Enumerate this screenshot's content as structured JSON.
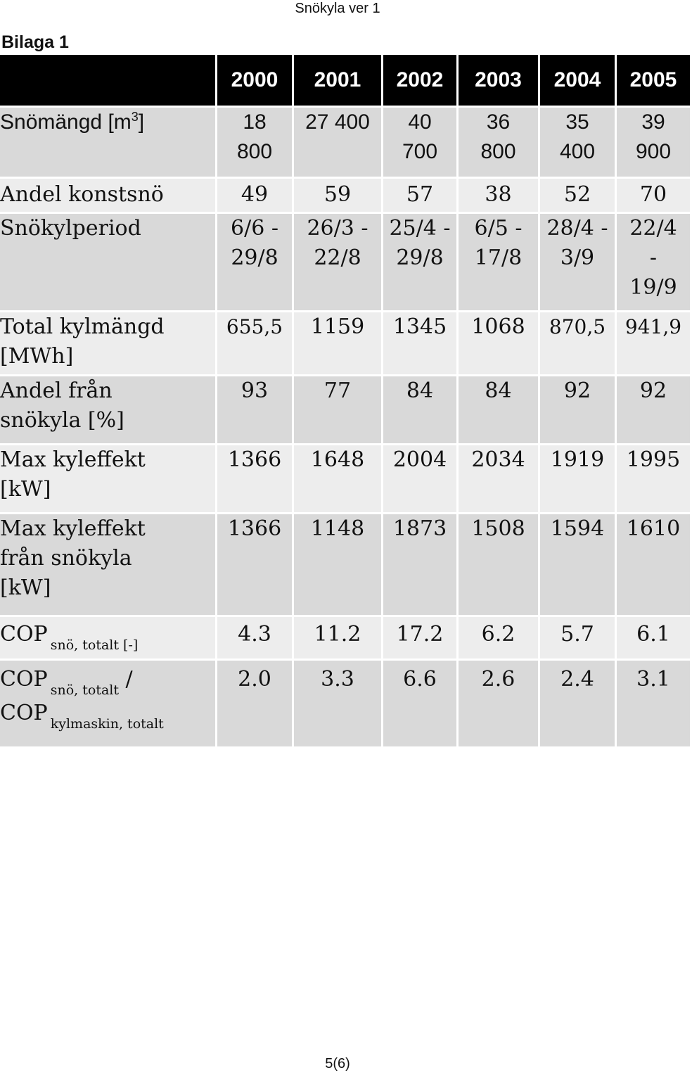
{
  "header": {
    "text": "Snökyla ver 1"
  },
  "attachment_label": "Bilaga 1",
  "table": {
    "years": [
      "2000",
      "2001",
      "2002",
      "2003",
      "2004",
      "2005"
    ],
    "rows": [
      {
        "label": "Snömängd [m",
        "label_sup": "3",
        "label_after": "]",
        "values": [
          "18 800",
          "27 400",
          "40 700",
          "36 800",
          "35 400",
          "39 900"
        ]
      },
      {
        "label": "Andel konstsnö",
        "values": [
          "49",
          "59",
          "57",
          "38",
          "52",
          "70"
        ]
      },
      {
        "label": "Snökylperiod",
        "values": [
          "6/6 - 29/8",
          "26/3 - 22/8",
          "25/4 - 29/8",
          "6/5 - 17/8",
          "28/4 - 3/9",
          "22/4 - 19/9"
        ]
      },
      {
        "label": "Total kylmängd [MWh]",
        "values": [
          "655,5",
          "1159",
          "1345",
          "1068",
          "870,5",
          "941,9"
        ]
      },
      {
        "label": "Andel från snökyla [%]",
        "values": [
          "93",
          "77",
          "84",
          "84",
          "92",
          "92"
        ]
      },
      {
        "label": "Max kyleffekt [kW]",
        "values": [
          "1366",
          "1648",
          "2004",
          "2034",
          "1919",
          "1995"
        ]
      },
      {
        "label": "Max kyleffekt från snökyla [kW]",
        "values": [
          "1366",
          "1148",
          "1873",
          "1508",
          "1594",
          "1610"
        ]
      },
      {
        "label_main": "COP",
        "label_sub": "snö, totalt [-]",
        "values": [
          "4.3",
          "11.2",
          "17.2",
          "6.2",
          "5.7",
          "6.1"
        ]
      },
      {
        "label_main": "COP",
        "label_sub": "snö, totalt",
        "label_slash": "/",
        "label_main2": "COP",
        "label_sub2": "kylmaskin, totalt",
        "values": [
          "2.0",
          "3.3",
          "6.6",
          "2.6",
          "2.4",
          "3.1"
        ]
      }
    ]
  },
  "page_number": "5(6)"
}
